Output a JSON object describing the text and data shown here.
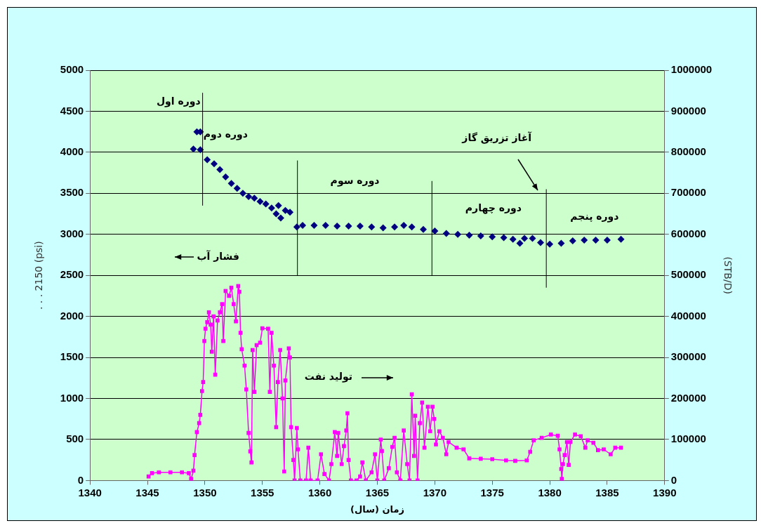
{
  "chart_data": {
    "type": "scatter",
    "xlabel": "زمان (سال)",
    "ylabel": ". . . 2150 (psi)",
    "y2label": "(STB/D)",
    "xlim": [
      1340,
      1390
    ],
    "xticks": [
      1340,
      1345,
      1350,
      1355,
      1360,
      1365,
      1370,
      1375,
      1380,
      1385,
      1390
    ],
    "ylim": [
      0,
      5000
    ],
    "yticks": [
      0,
      500,
      1000,
      1500,
      2000,
      2500,
      3000,
      3500,
      4000,
      4500,
      5000
    ],
    "y2lim": [
      0,
      1000000
    ],
    "y2ticks": [
      0,
      100000,
      200000,
      300000,
      400000,
      500000,
      600000,
      700000,
      800000,
      900000,
      1000000
    ],
    "grid": "y",
    "legend": false,
    "series": [
      {
        "marker": "diamond",
        "color": "#000080",
        "x": [
          1349.0,
          1349.3,
          1349.6,
          1349.6,
          1350.2,
          1350.8,
          1351.3,
          1351.8,
          1352.3,
          1352.8,
          1353.3,
          1353.8,
          1354.3,
          1354.8,
          1355.3,
          1355.8,
          1356.2,
          1356.4,
          1356.6,
          1357.0,
          1357.4,
          1358.0,
          1358.5,
          1359.5,
          1360.5,
          1361.5,
          1362.5,
          1363.5,
          1364.5,
          1365.5,
          1366.5,
          1367.3,
          1368,
          1369,
          1370,
          1371,
          1372,
          1373,
          1374,
          1375,
          1376,
          1376.8,
          1377.4,
          1377.8,
          1378.5,
          1379.2,
          1380,
          1381,
          1382,
          1383,
          1384,
          1385,
          1386.2
        ],
        "values": [
          4040,
          4250,
          4250,
          4030,
          3910,
          3860,
          3790,
          3700,
          3620,
          3560,
          3500,
          3460,
          3440,
          3400,
          3370,
          3320,
          3250,
          3350,
          3200,
          3290,
          3270,
          3090,
          3110,
          3110,
          3110,
          3100,
          3100,
          3100,
          3090,
          3080,
          3090,
          3110,
          3090,
          3060,
          3040,
          3010,
          3000,
          2990,
          2980,
          2970,
          2960,
          2940,
          2890,
          2950,
          2950,
          2900,
          2880,
          2890,
          2920,
          2930,
          2930,
          2930,
          2940
        ]
      },
      {
        "type": "line",
        "axis": "y2",
        "marker": "square",
        "line_style": "solid",
        "color": "#ff00ff",
        "x": [
          1345.1,
          1345.4,
          1346,
          1347,
          1348,
          1348.6,
          1348.8,
          1349.0,
          1349.1,
          1349.3,
          1349.5,
          1349.6,
          1349.75,
          1349.85,
          1349.95,
          1350.05,
          1350.2,
          1350.35,
          1350.5,
          1350.6,
          1350.75,
          1350.9,
          1351.1,
          1351.3,
          1351.5,
          1351.6,
          1351.8,
          1352.1,
          1352.3,
          1352.5,
          1352.7,
          1352.9,
          1353.0,
          1353.1,
          1353.2,
          1353.45,
          1353.6,
          1353.8,
          1353.95,
          1354.05,
          1354.15,
          1354.3,
          1354.5,
          1354.8,
          1355.0,
          1355.5,
          1355.65,
          1355.8,
          1356.0,
          1356.2,
          1356.35,
          1356.55,
          1356.75,
          1356.9,
          1357.0,
          1357.3,
          1357.4,
          1357.5,
          1357.7,
          1357.8,
          1358.0,
          1358.1,
          1358.3,
          1358.8,
          1359.0,
          1359.2,
          1359.8,
          1360.1,
          1360.4,
          1360.8,
          1361.0,
          1361.3,
          1361.5,
          1361.6,
          1361.9,
          1362.1,
          1362.3,
          1362.4,
          1362.5,
          1362.7,
          1363.2,
          1363.5,
          1363.7,
          1364.0,
          1364.5,
          1364.8,
          1365.0,
          1365.3,
          1365.4,
          1365.6,
          1366.0,
          1366.3,
          1366.5,
          1366.7,
          1367.0,
          1367.3,
          1367.6,
          1367.8,
          1368.0,
          1368.2,
          1368.3,
          1368.5,
          1368.7,
          1368.9,
          1369.1,
          1369.4,
          1369.6,
          1369.8,
          1369.95,
          1370.1,
          1370.4,
          1370.7,
          1371.0,
          1371.2,
          1371.9,
          1372.5,
          1373,
          1374,
          1375,
          1376.2,
          1377,
          1378,
          1378.3,
          1378.6,
          1379.3,
          1380.1,
          1380.7,
          1380.85,
          1381.0,
          1381.05,
          1381.15,
          1381.3,
          1381.5,
          1381.65,
          1381.8,
          1382.2,
          1382.7,
          1383.1,
          1383.3,
          1383.8,
          1384.2,
          1384.7,
          1385.3,
          1385.7,
          1386.2
        ],
        "values": [
          10000,
          18000,
          20000,
          20000,
          20000,
          18000,
          4000,
          24000,
          62000,
          118000,
          140000,
          160000,
          218000,
          240000,
          340000,
          370000,
          386000,
          410000,
          380000,
          314000,
          400000,
          258000,
          390000,
          410000,
          430000,
          340000,
          462000,
          450000,
          470000,
          430000,
          388000,
          474000,
          460000,
          360000,
          320000,
          280000,
          222000,
          116000,
          71000,
          44000,
          318000,
          216000,
          330000,
          336000,
          371000,
          370000,
          216000,
          360000,
          280000,
          130000,
          240000,
          318000,
          200000,
          22000,
          244000,
          322000,
          300000,
          130000,
          50000,
          0,
          128000,
          76000,
          0,
          0,
          80000,
          0,
          0,
          64000,
          16000,
          0,
          40000,
          118000,
          60000,
          116000,
          40000,
          84000,
          122000,
          164000,
          50000,
          0,
          0,
          10000,
          44000,
          0,
          20000,
          64000,
          0,
          100000,
          72000,
          0,
          30000,
          82000,
          104000,
          20000,
          0,
          122000,
          40000,
          0,
          210000,
          60000,
          158000,
          0,
          140000,
          190000,
          80000,
          180000,
          120000,
          180000,
          150000,
          88000,
          120000,
          104000,
          64000,
          94000,
          80000,
          76000,
          54000,
          53000,
          52000,
          49000,
          48000,
          49000,
          70000,
          98000,
          104000,
          112000,
          109000,
          76000,
          28000,
          4000,
          40000,
          62000,
          94000,
          38000,
          94000,
          112000,
          108000,
          80000,
          98000,
          92000,
          74000,
          76000,
          64000,
          80000,
          80000
        ]
      }
    ],
    "ref_lines": [
      {
        "axis": "x",
        "value": 1349.8,
        "color": "#000000"
      },
      {
        "axis": "x",
        "value": 1358.05,
        "color": "#000000"
      },
      {
        "axis": "x",
        "value": 1369.75,
        "color": "#000000"
      },
      {
        "axis": "x",
        "value": 1379.7,
        "color": "#000000"
      }
    ],
    "annotations": [
      "دوره اول",
      "دوره دوم",
      "دوره سوم",
      "دوره چهارم",
      "دوره پنجم",
      "آغاز تزریق گاز",
      "فشار آب",
      "تولید نفت"
    ]
  }
}
